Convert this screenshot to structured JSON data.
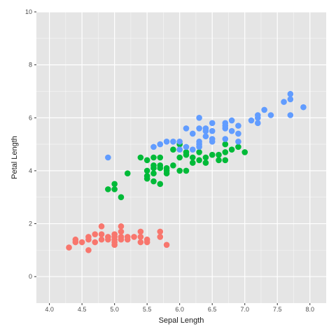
{
  "chart_data": {
    "type": "scatter",
    "title": "",
    "xlabel": "Sepal Length",
    "ylabel": "Petal Length",
    "xlim": [
      3.8,
      8.25
    ],
    "ylim": [
      -1,
      10
    ],
    "x_ticks": [
      4.0,
      4.5,
      5.0,
      5.5,
      6.0,
      6.5,
      7.0,
      7.5,
      8.0
    ],
    "x_tick_labels": [
      "4.0",
      "4.5",
      "5.0",
      "5.5",
      "6.0",
      "6.5",
      "7.0",
      "7.5",
      "8.0"
    ],
    "y_ticks": [
      0,
      2,
      4,
      6,
      8,
      10
    ],
    "y_tick_labels": [
      "0",
      "2",
      "4",
      "6",
      "8",
      "10"
    ],
    "grid": true,
    "legend": "none",
    "background_color": "#e5e5e5",
    "grid_color": "#ffffff",
    "series": [
      {
        "color": "#f8766d",
        "points": [
          [
            4.3,
            1.1
          ],
          [
            4.4,
            1.3
          ],
          [
            4.4,
            1.4
          ],
          [
            4.5,
            1.3
          ],
          [
            4.6,
            1.0
          ],
          [
            4.6,
            1.4
          ],
          [
            4.6,
            1.5
          ],
          [
            4.7,
            1.3
          ],
          [
            4.7,
            1.6
          ],
          [
            4.8,
            1.4
          ],
          [
            4.8,
            1.6
          ],
          [
            4.8,
            1.9
          ],
          [
            4.9,
            1.4
          ],
          [
            4.9,
            1.5
          ],
          [
            5.0,
            1.2
          ],
          [
            5.0,
            1.3
          ],
          [
            5.0,
            1.4
          ],
          [
            5.0,
            1.5
          ],
          [
            5.0,
            1.6
          ],
          [
            5.1,
            1.4
          ],
          [
            5.1,
            1.5
          ],
          [
            5.1,
            1.7
          ],
          [
            5.1,
            1.9
          ],
          [
            5.2,
            1.4
          ],
          [
            5.2,
            1.5
          ],
          [
            5.3,
            1.5
          ],
          [
            5.4,
            1.3
          ],
          [
            5.4,
            1.5
          ],
          [
            5.4,
            1.7
          ],
          [
            5.5,
            1.3
          ],
          [
            5.5,
            1.4
          ],
          [
            5.7,
            1.5
          ],
          [
            5.7,
            1.7
          ],
          [
            5.8,
            1.2
          ]
        ]
      },
      {
        "color": "#00ba38",
        "points": [
          [
            4.9,
            3.3
          ],
          [
            5.0,
            3.3
          ],
          [
            5.0,
            3.5
          ],
          [
            5.1,
            3.0
          ],
          [
            5.2,
            3.9
          ],
          [
            5.4,
            4.5
          ],
          [
            5.5,
            3.7
          ],
          [
            5.5,
            3.8
          ],
          [
            5.5,
            4.0
          ],
          [
            5.5,
            4.4
          ],
          [
            5.6,
            3.6
          ],
          [
            5.6,
            3.9
          ],
          [
            5.6,
            4.1
          ],
          [
            5.6,
            4.2
          ],
          [
            5.6,
            4.5
          ],
          [
            5.7,
            3.5
          ],
          [
            5.7,
            4.1
          ],
          [
            5.7,
            4.2
          ],
          [
            5.7,
            4.5
          ],
          [
            5.8,
            3.9
          ],
          [
            5.8,
            4.0
          ],
          [
            5.8,
            4.1
          ],
          [
            5.9,
            4.2
          ],
          [
            5.9,
            4.8
          ],
          [
            6.0,
            4.0
          ],
          [
            6.0,
            4.5
          ],
          [
            6.0,
            5.0
          ],
          [
            6.1,
            4.0
          ],
          [
            6.1,
            4.6
          ],
          [
            6.1,
            4.7
          ],
          [
            6.2,
            4.3
          ],
          [
            6.2,
            4.5
          ],
          [
            6.3,
            4.4
          ],
          [
            6.3,
            4.7
          ],
          [
            6.4,
            4.3
          ],
          [
            6.4,
            4.5
          ],
          [
            6.5,
            4.6
          ],
          [
            6.6,
            4.4
          ],
          [
            6.6,
            4.6
          ],
          [
            6.7,
            4.4
          ],
          [
            6.7,
            4.7
          ],
          [
            6.7,
            5.0
          ],
          [
            6.8,
            4.8
          ],
          [
            6.9,
            4.9
          ],
          [
            7.0,
            4.7
          ]
        ]
      },
      {
        "color": "#619cff",
        "points": [
          [
            4.9,
            4.5
          ],
          [
            5.6,
            4.9
          ],
          [
            5.7,
            5.0
          ],
          [
            5.8,
            5.1
          ],
          [
            5.9,
            5.1
          ],
          [
            6.0,
            4.8
          ],
          [
            6.0,
            5.1
          ],
          [
            6.1,
            4.9
          ],
          [
            6.1,
            5.6
          ],
          [
            6.2,
            4.8
          ],
          [
            6.2,
            5.4
          ],
          [
            6.3,
            4.9
          ],
          [
            6.3,
            5.0
          ],
          [
            6.3,
            5.1
          ],
          [
            6.3,
            5.6
          ],
          [
            6.3,
            6.0
          ],
          [
            6.4,
            5.3
          ],
          [
            6.4,
            5.5
          ],
          [
            6.4,
            5.6
          ],
          [
            6.5,
            5.1
          ],
          [
            6.5,
            5.2
          ],
          [
            6.5,
            5.5
          ],
          [
            6.5,
            5.8
          ],
          [
            6.7,
            5.2
          ],
          [
            6.7,
            5.6
          ],
          [
            6.7,
            5.7
          ],
          [
            6.7,
            5.8
          ],
          [
            6.8,
            5.5
          ],
          [
            6.8,
            5.9
          ],
          [
            6.9,
            5.1
          ],
          [
            6.9,
            5.4
          ],
          [
            6.9,
            5.7
          ],
          [
            7.1,
            5.9
          ],
          [
            7.2,
            5.8
          ],
          [
            7.2,
            6.0
          ],
          [
            7.2,
            6.1
          ],
          [
            7.3,
            6.3
          ],
          [
            7.4,
            6.1
          ],
          [
            7.6,
            6.6
          ],
          [
            7.7,
            6.1
          ],
          [
            7.7,
            6.7
          ],
          [
            7.7,
            6.9
          ],
          [
            7.9,
            6.4
          ]
        ]
      }
    ]
  }
}
